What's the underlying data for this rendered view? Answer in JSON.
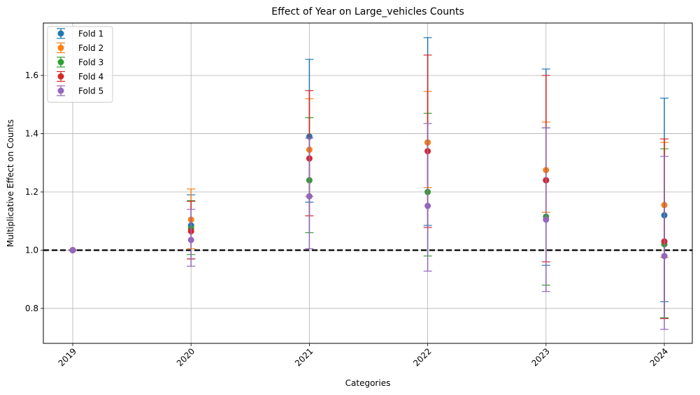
{
  "chart_data": {
    "type": "scatter",
    "title": "Effect of Year on Large_vehicles Counts",
    "xlabel": "Categories",
    "ylabel": "Multiplicative Effect on Counts",
    "categories": [
      "2019",
      "2020",
      "2021",
      "2022",
      "2023",
      "2024"
    ],
    "ylim": [
      0.68,
      1.78
    ],
    "yticks": [
      0.8,
      1.0,
      1.2,
      1.4,
      1.6
    ],
    "ytick_labels": [
      "0.8",
      "1.0",
      "1.2",
      "1.4",
      "1.6"
    ],
    "grid": true,
    "legend_position": "top-left",
    "reference_line": {
      "y": 1.0,
      "style": "dashed",
      "color": "#000000"
    },
    "series": [
      {
        "name": "Fold 1",
        "color": "#1f77b4",
        "values": [
          1.0,
          1.085,
          1.39,
          1.37,
          1.24,
          1.12
        ],
        "lower": [
          1.0,
          0.97,
          1.165,
          1.085,
          0.948,
          0.823
        ],
        "upper": [
          1.0,
          1.19,
          1.655,
          1.73,
          1.622,
          1.522
        ]
      },
      {
        "name": "Fold 2",
        "color": "#ff7f0e",
        "values": [
          1.0,
          1.105,
          1.345,
          1.37,
          1.275,
          1.155
        ],
        "lower": [
          1.0,
          1.005,
          1.185,
          1.215,
          1.13,
          0.975
        ],
        "upper": [
          1.0,
          1.21,
          1.52,
          1.545,
          1.44,
          1.37
        ]
      },
      {
        "name": "Fold 3",
        "color": "#2ca02c",
        "values": [
          1.0,
          1.075,
          1.24,
          1.2,
          1.115,
          1.02
        ],
        "lower": [
          1.0,
          0.985,
          1.06,
          0.98,
          0.88,
          0.768
        ],
        "upper": [
          1.0,
          1.17,
          1.455,
          1.47,
          1.42,
          1.348
        ]
      },
      {
        "name": "Fold 4",
        "color": "#d62728",
        "values": [
          1.0,
          1.065,
          1.315,
          1.34,
          1.24,
          1.03
        ],
        "lower": [
          1.0,
          0.97,
          1.118,
          1.078,
          0.96,
          0.765
        ],
        "upper": [
          1.0,
          1.168,
          1.548,
          1.67,
          1.6,
          1.382
        ]
      },
      {
        "name": "Fold 5",
        "color": "#9467bd",
        "values": [
          1.0,
          1.035,
          1.185,
          1.152,
          1.105,
          0.98
        ],
        "lower": [
          1.0,
          0.945,
          1.005,
          0.928,
          0.858,
          0.728
        ],
        "upper": [
          1.0,
          1.14,
          1.385,
          1.435,
          1.42,
          1.322
        ]
      }
    ]
  }
}
